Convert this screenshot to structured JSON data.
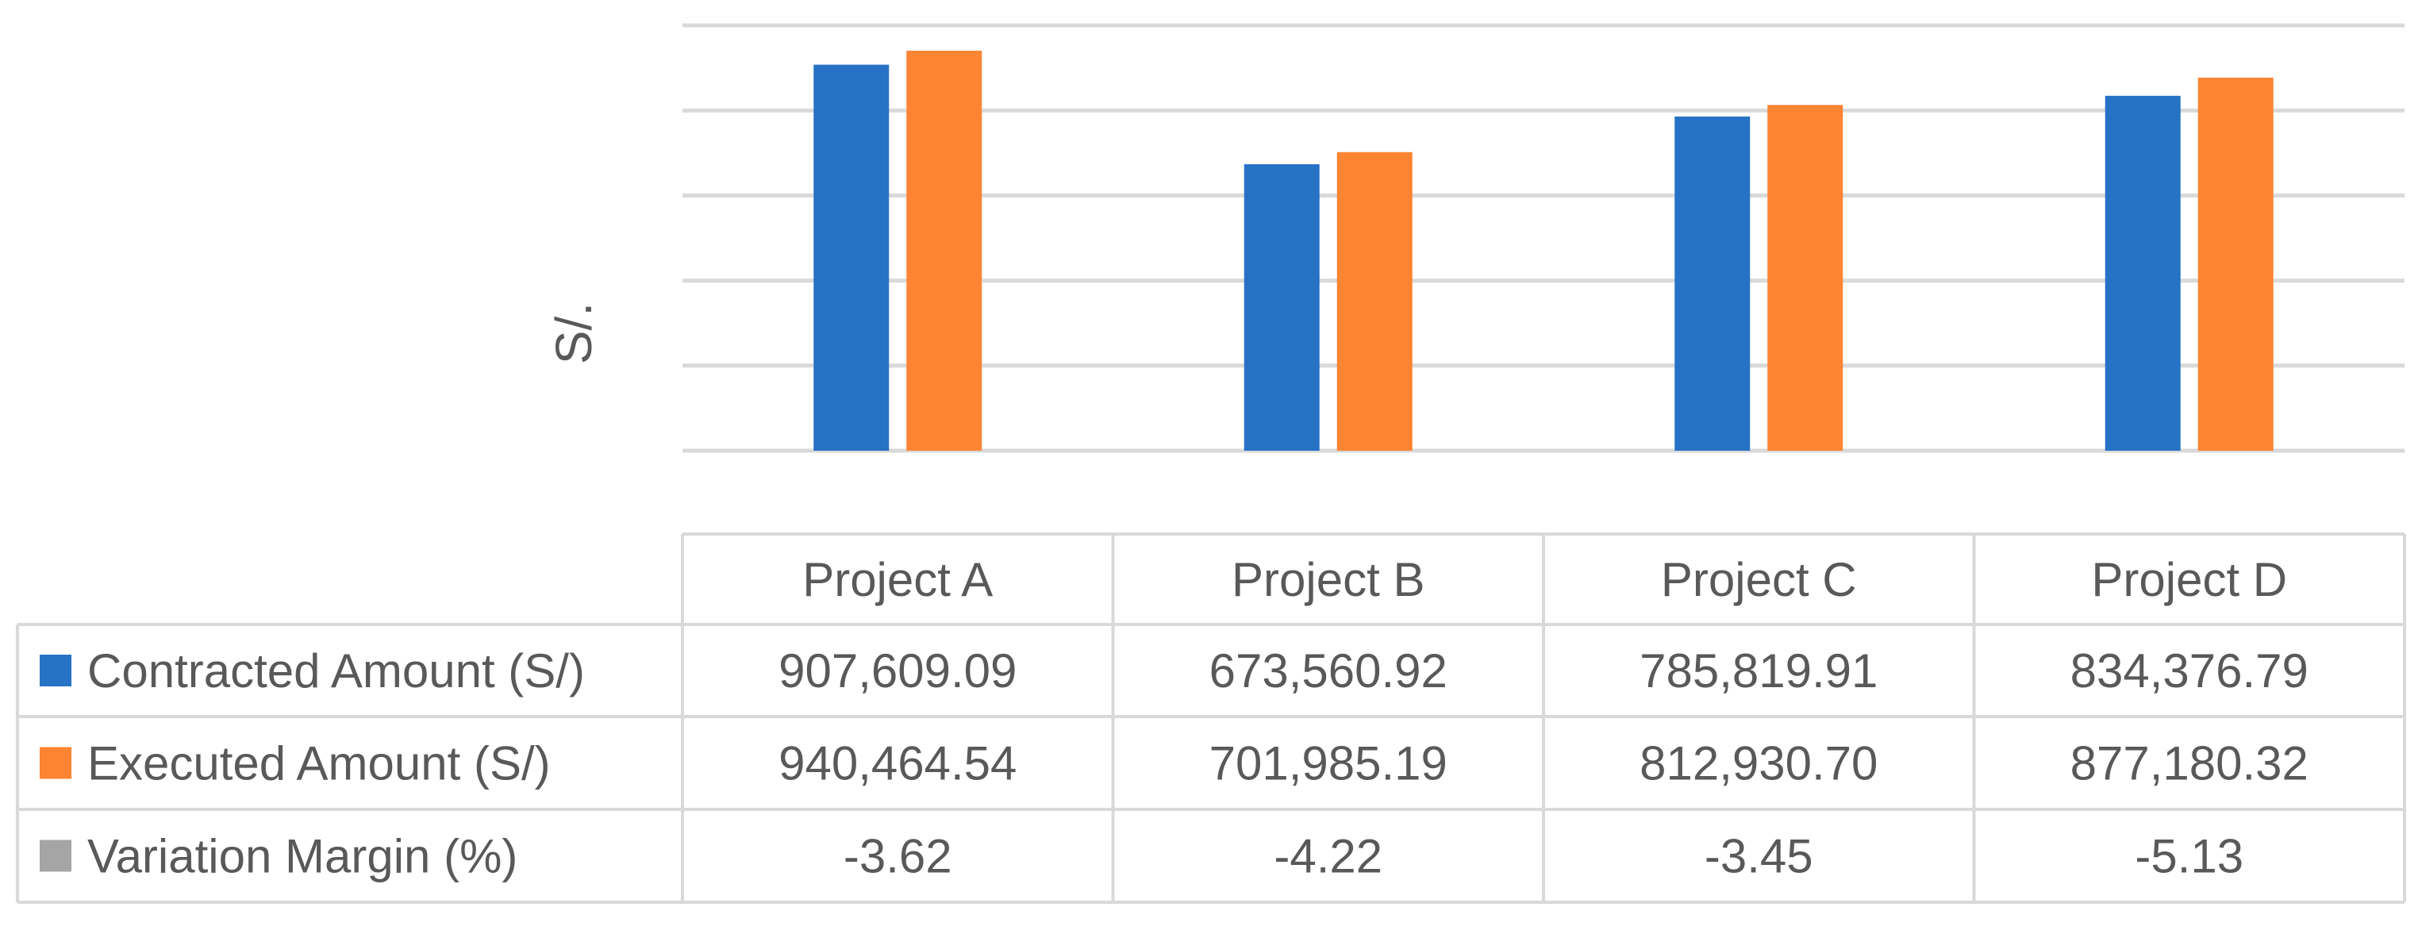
{
  "chart_data": {
    "type": "bar",
    "title": "",
    "xlabel": "",
    "ylabel": "S/.",
    "ylim": [
      0,
      1000000
    ],
    "grid": true,
    "categories": [
      "Project A",
      "Project B",
      "Project C",
      "Project D"
    ],
    "series": [
      {
        "name": "Contracted Amount (S/)",
        "color": "#2672c5",
        "values": [
          907609.09,
          673560.92,
          785819.91,
          834376.79
        ],
        "labels": [
          "907,609.09",
          "673,560.92",
          "785,819.91",
          "834,376.79"
        ],
        "plotted": true
      },
      {
        "name": "Executed Amount (S/)",
        "color": "#fd8433",
        "values": [
          940464.54,
          701985.19,
          812930.7,
          877180.32
        ],
        "labels": [
          "940,464.54",
          "701,985.19",
          "812,930.70",
          "877,180.32"
        ],
        "plotted": true
      },
      {
        "name": "Variation Margin (%)",
        "color": "#a5a5a5",
        "values": [
          -3.62,
          -4.22,
          -3.45,
          -5.13
        ],
        "labels": [
          "-3.62",
          "-4.22",
          "-3.45",
          "-5.13"
        ],
        "plotted": false
      }
    ],
    "data_table": true
  }
}
